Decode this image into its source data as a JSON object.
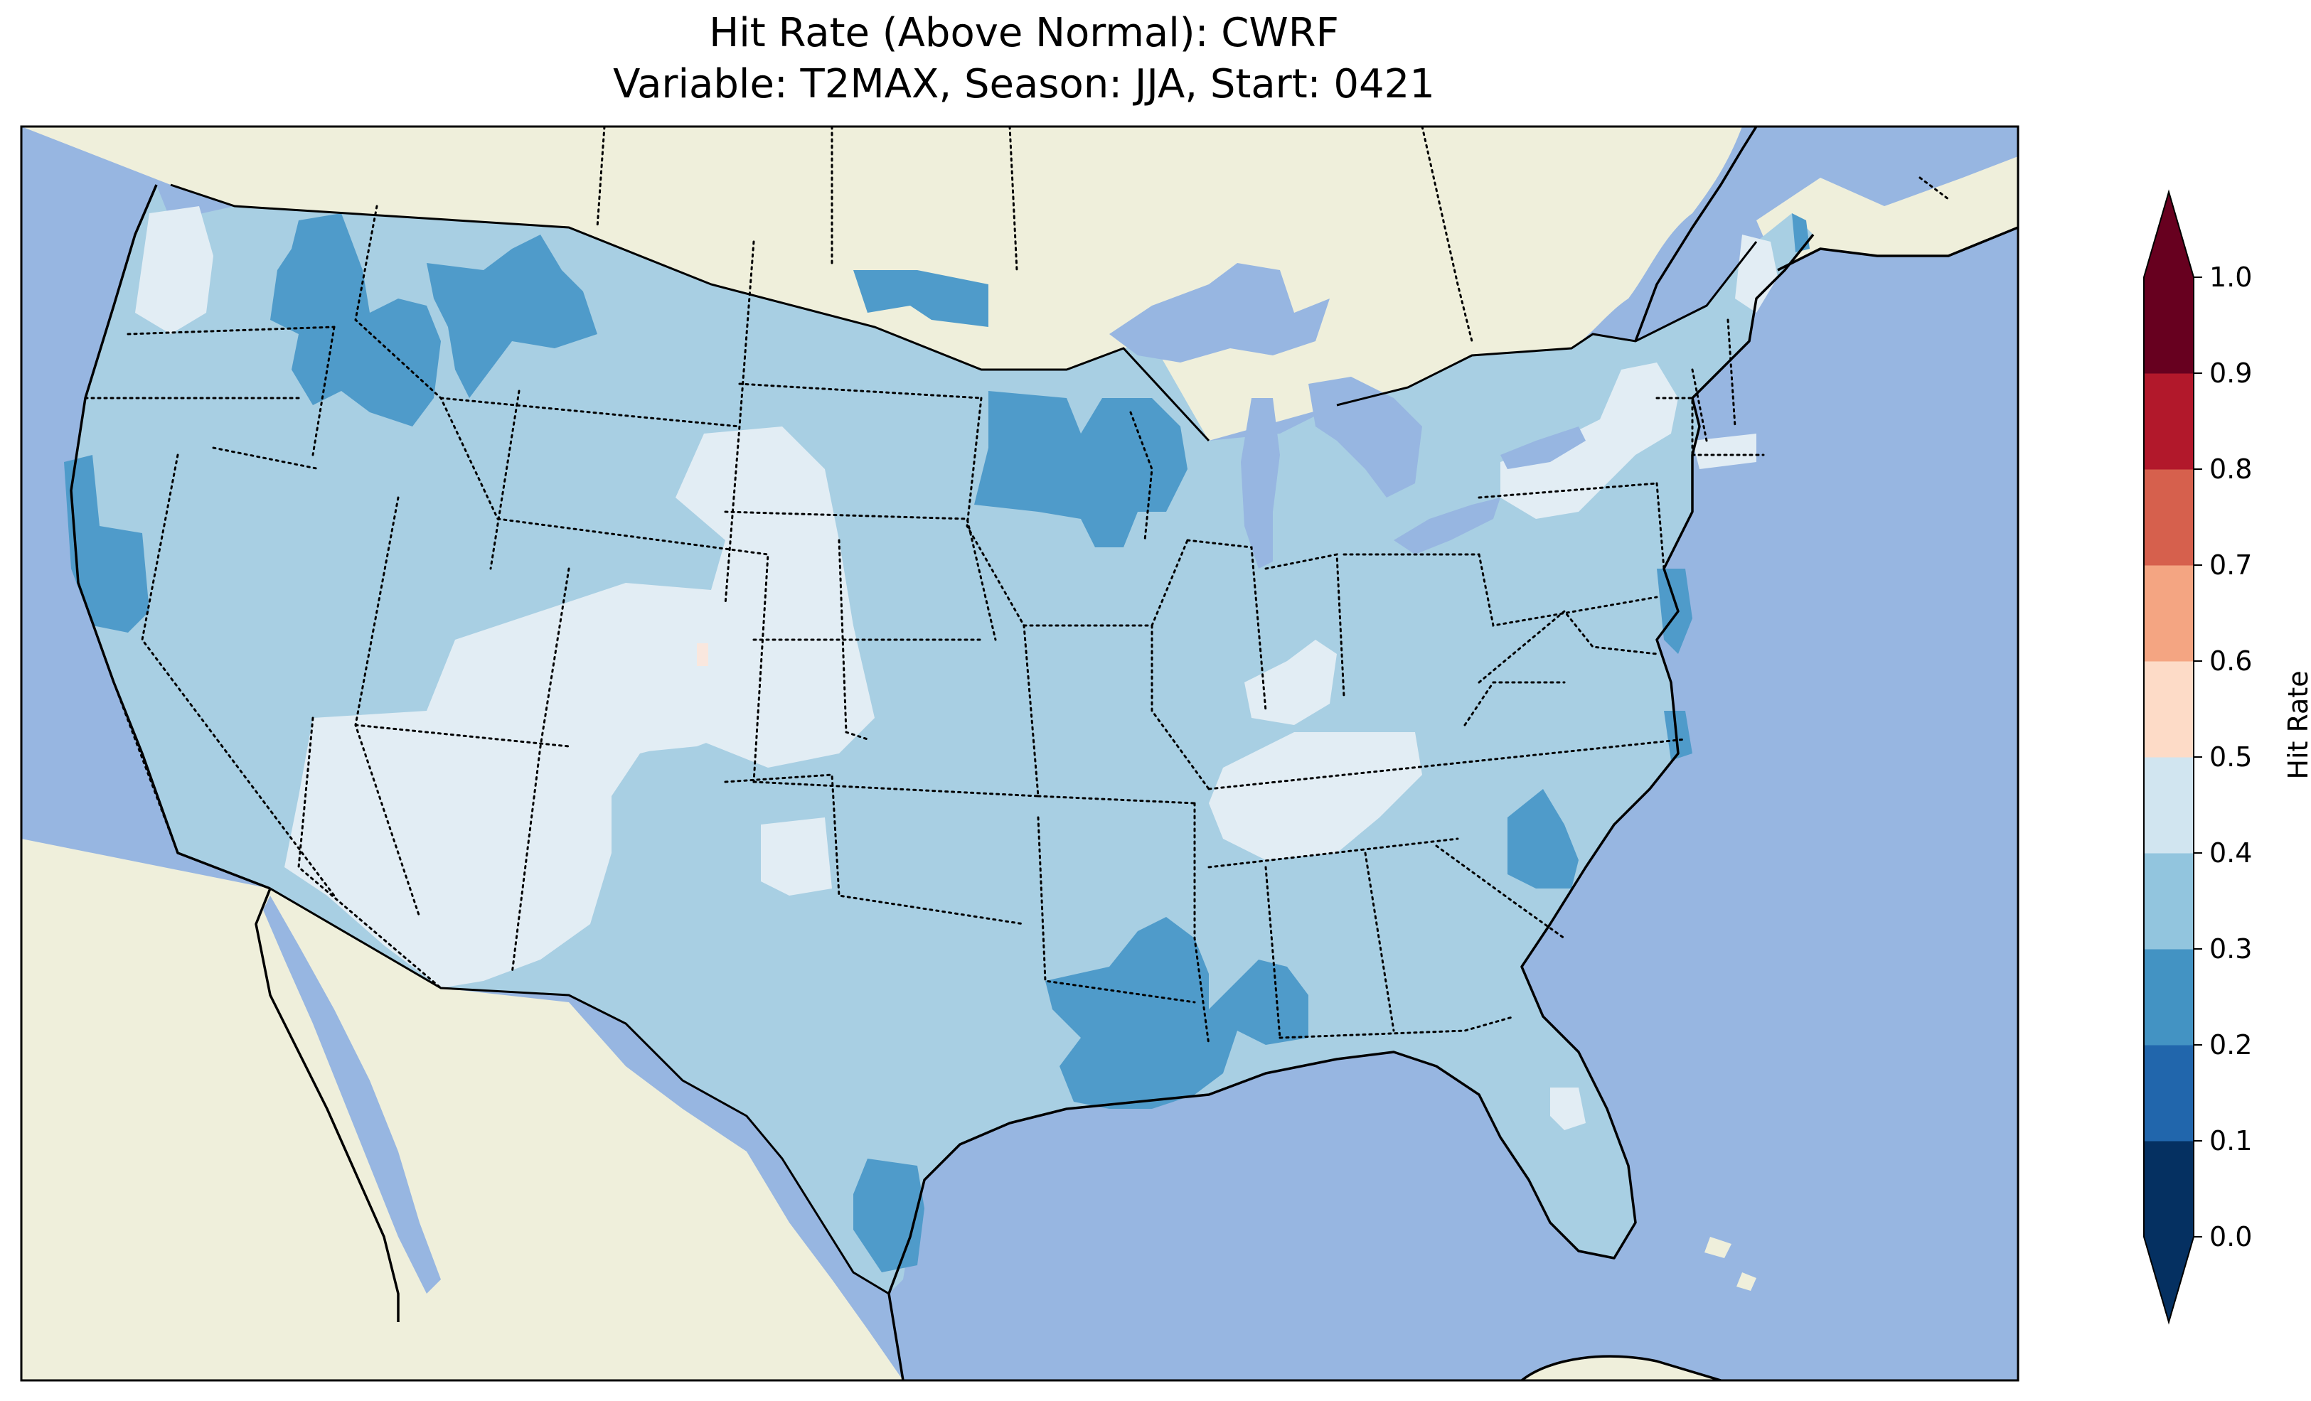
{
  "figure": {
    "title_line1": "Hit Rate (Above Normal): CWRF",
    "title_line2": "Variable: T2MAX, Season: JJA, Start: 0421"
  },
  "colorbar": {
    "label": "Hit Rate",
    "ticks": [
      "0.0",
      "0.1",
      "0.2",
      "0.3",
      "0.4",
      "0.5",
      "0.6",
      "0.7",
      "0.8",
      "0.9",
      "1.0"
    ],
    "colors": [
      "#053061",
      "#2166ac",
      "#4393c3",
      "#92c5de",
      "#d1e5f0",
      "#fddbc7",
      "#f4a582",
      "#d6604d",
      "#b2182b",
      "#67001f"
    ],
    "under_color": "#053061",
    "over_color": "#67001f",
    "extend": "both"
  },
  "map_colors": {
    "ocean": "#97b6e1",
    "land": "#efefdb",
    "bin_0_2_0_3": "#4f9bca",
    "bin_0_3_0_4": "#a8cfe3",
    "bin_0_4_0_5": "#e2edf4",
    "bin_0_5_0_6": "#f9e7de"
  },
  "chart_data": {
    "type": "heatmap",
    "title": "Hit Rate (Above Normal): CWRF\nVariable: T2MAX, Season: JJA, Start: 0421",
    "variable": "T2MAX",
    "season": "JJA",
    "start": "0421",
    "colorbar_label": "Hit Rate",
    "value_range": [
      0.0,
      1.0
    ],
    "bin_edges": [
      0.0,
      0.1,
      0.2,
      0.3,
      0.4,
      0.5,
      0.6,
      0.7,
      0.8,
      0.9,
      1.0
    ],
    "predominant_value_range": [
      0.3,
      0.4
    ],
    "regions": [
      {
        "name": "Idaho / E Oregon",
        "value_range": [
          0.2,
          0.3
        ]
      },
      {
        "name": "W Montana",
        "value_range": [
          0.2,
          0.3
        ]
      },
      {
        "name": "N Minnesota / Wisconsin",
        "value_range": [
          0.2,
          0.3
        ]
      },
      {
        "name": "Louisiana / Mississippi",
        "value_range": [
          0.2,
          0.3
        ]
      },
      {
        "name": "S Texas coast",
        "value_range": [
          0.2,
          0.3
        ]
      },
      {
        "name": "N California coast",
        "value_range": [
          0.2,
          0.3
        ]
      },
      {
        "name": "South Carolina",
        "value_range": [
          0.2,
          0.3
        ]
      },
      {
        "name": "Chesapeake / NC coast",
        "value_range": [
          0.2,
          0.3
        ]
      },
      {
        "name": "Arizona / Utah / Colorado",
        "value_range": [
          0.4,
          0.5
        ]
      },
      {
        "name": "Nebraska / South Dakota",
        "value_range": [
          0.4,
          0.5
        ]
      },
      {
        "name": "Tennessee / Kentucky",
        "value_range": [
          0.4,
          0.5
        ]
      },
      {
        "name": "New York / Vermont",
        "value_range": [
          0.4,
          0.5
        ]
      },
      {
        "name": "Washington coast",
        "value_range": [
          0.4,
          0.5
        ]
      },
      {
        "name": "Colorado point",
        "value_range": [
          0.5,
          0.6
        ]
      }
    ]
  }
}
